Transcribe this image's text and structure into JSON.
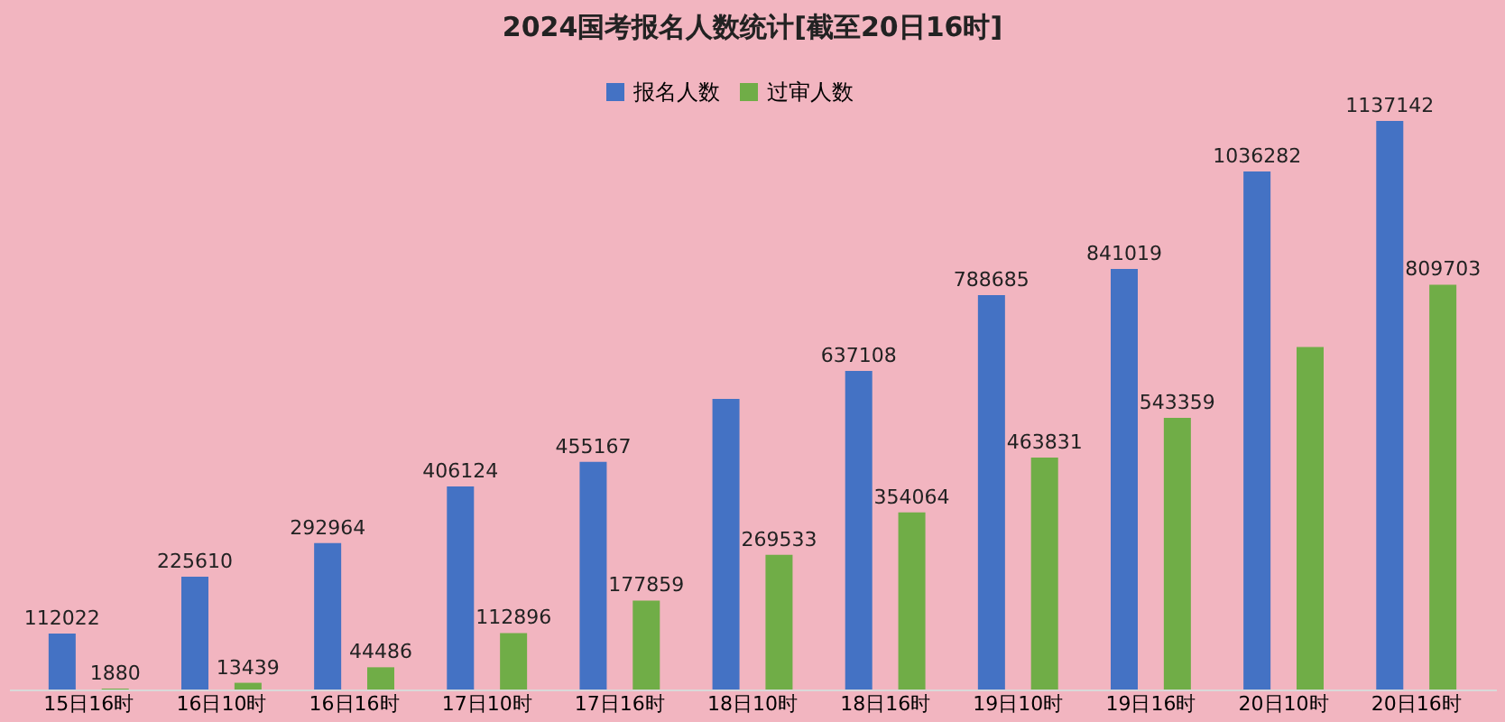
{
  "chart_data": {
    "type": "bar",
    "title": "2024国考报名人数统计[截至20日16时]",
    "categories": [
      "15日16时",
      "16日10时",
      "16日16时",
      "17日10时",
      "17日16时",
      "18日10时",
      "18日16时",
      "19日10时",
      "19日16时",
      "20日10时",
      "20日16时"
    ],
    "series": [
      {
        "name": "报名人数",
        "color": "#4472c4",
        "values": [
          112022,
          225610,
          292964,
          406124,
          455167,
          581000,
          637108,
          788685,
          841019,
          1036282,
          1137142
        ],
        "value_labels": [
          "112022",
          "225610",
          "292964",
          "406124",
          "455167",
          null,
          "637108",
          "788685",
          "841019",
          "1036282",
          "1137142"
        ]
      },
      {
        "name": "过审人数",
        "color": "#70ad47",
        "values": [
          1880,
          13439,
          44486,
          112896,
          177859,
          269533,
          354064,
          463831,
          543359,
          685000,
          809703
        ],
        "value_labels": [
          "1880",
          "13439",
          "44486",
          "112896",
          "177859",
          "269533",
          "354064",
          "463831",
          "543359",
          null,
          "809703"
        ]
      }
    ],
    "tick_labels": "x",
    "legend": "top",
    "grid": false
  }
}
